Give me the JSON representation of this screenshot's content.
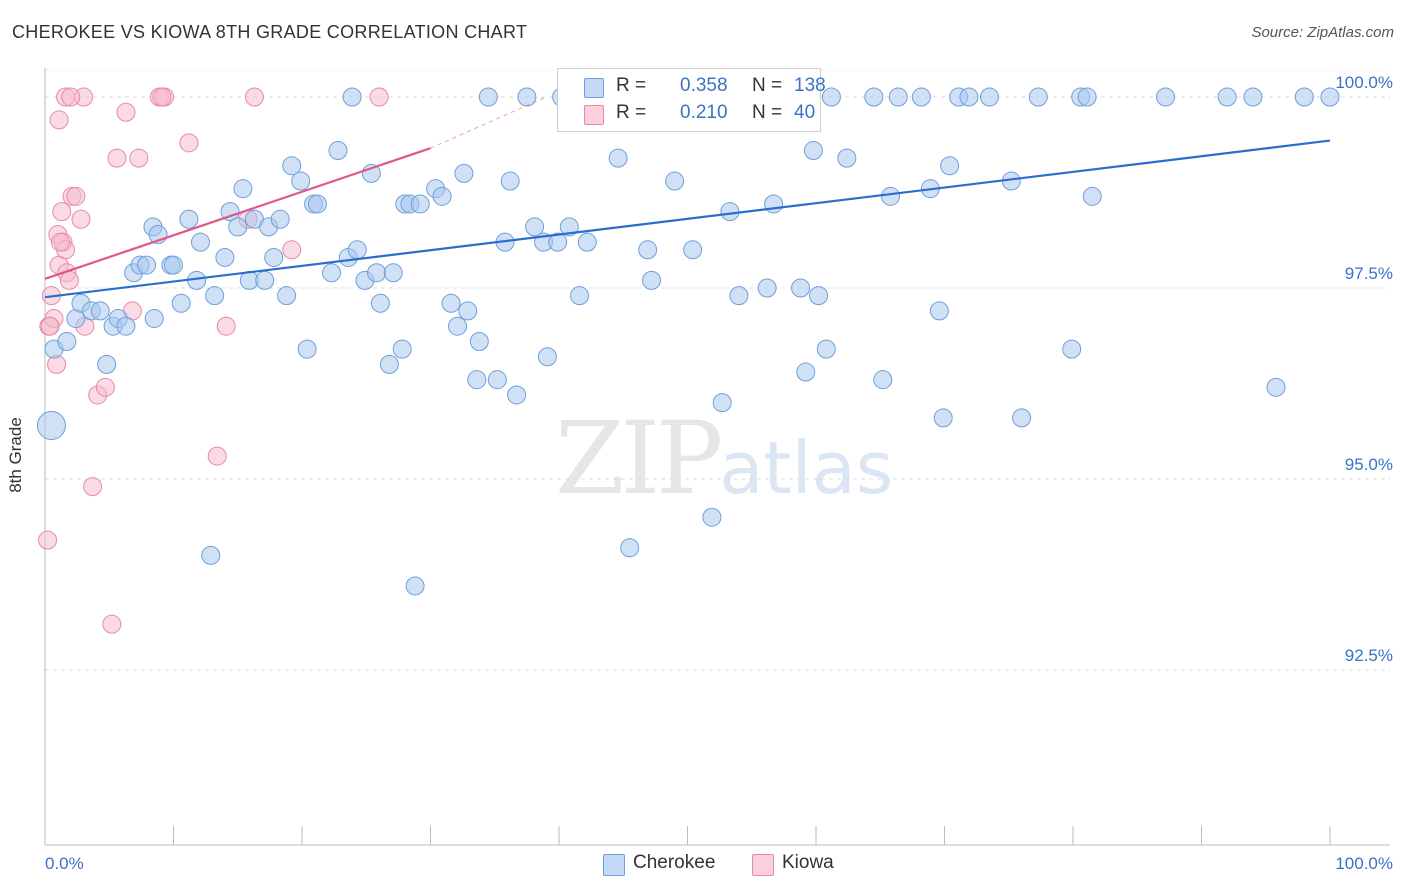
{
  "header": {
    "title": "CHEROKEE VS KIOWA 8TH GRADE CORRELATION CHART",
    "source": "Source: ZipAtlas.com"
  },
  "watermark": {
    "zip": "ZIP",
    "atlas": "atlas"
  },
  "colors": {
    "cherokee_fill": "#a9c8ee",
    "cherokee_stroke": "#6e9fdc",
    "cherokee_line": "#2a6dcf",
    "kiowa_fill": "#f6bccd",
    "kiowa_stroke": "#e88aa6",
    "kiowa_line": "#e0578a",
    "axis_label": "#3a72c4",
    "grid": "#dddddd"
  },
  "legend": {
    "rows": [
      {
        "r_label": "R =",
        "r_value": "0.358",
        "n_label": "N =",
        "n_value": "138"
      },
      {
        "r_label": "R =",
        "r_value": "0.210",
        "n_label": "N =",
        "n_value": "40"
      }
    ],
    "bottom": [
      {
        "name": "Cherokee"
      },
      {
        "name": "Kiowa"
      }
    ]
  },
  "chart_data": {
    "type": "scatter",
    "title": "CHEROKEE VS KIOWA 8TH GRADE CORRELATION CHART",
    "xlabel": "",
    "ylabel": "8th Grade",
    "xlim": [
      0,
      100
    ],
    "ylim": [
      90.0,
      100.45
    ],
    "x_tick_labels": [
      "0.0%",
      "100.0%"
    ],
    "y_ticks": [
      92.5,
      95.0,
      97.5,
      100.0
    ],
    "y_tick_labels": [
      "92.5%",
      "95.0%",
      "97.5%",
      "100.0%"
    ],
    "grid": true,
    "legend_placement": "top-center",
    "series": [
      {
        "name": "Cherokee",
        "R": 0.358,
        "N": 138,
        "trend": {
          "x": [
            0,
            100
          ],
          "y": [
            97.38,
            99.43
          ]
        },
        "points": [
          [
            0.5,
            95.7,
            14
          ],
          [
            0.7,
            96.7,
            9
          ],
          [
            1.7,
            96.8,
            9
          ],
          [
            2.4,
            97.1,
            9
          ],
          [
            2.8,
            97.3,
            9
          ],
          [
            3.6,
            97.2,
            9
          ],
          [
            4.3,
            97.2,
            9
          ],
          [
            4.8,
            96.5,
            9
          ],
          [
            5.3,
            97.0,
            9
          ],
          [
            5.7,
            97.1,
            9
          ],
          [
            6.3,
            97.0,
            9
          ],
          [
            6.9,
            97.7,
            9
          ],
          [
            7.4,
            97.8,
            9
          ],
          [
            7.9,
            97.8,
            9
          ],
          [
            8.5,
            97.1,
            9
          ],
          [
            8.4,
            98.3,
            9
          ],
          [
            8.8,
            98.2,
            9
          ],
          [
            9.8,
            97.8,
            9
          ],
          [
            10.0,
            97.8,
            9
          ],
          [
            10.6,
            97.3,
            9
          ],
          [
            11.2,
            98.4,
            9
          ],
          [
            11.8,
            97.6,
            9
          ],
          [
            12.1,
            98.1,
            9
          ],
          [
            12.9,
            94.0,
            9
          ],
          [
            13.2,
            97.4,
            9
          ],
          [
            14.0,
            97.9,
            9
          ],
          [
            14.4,
            98.5,
            9
          ],
          [
            15.0,
            98.3,
            9
          ],
          [
            15.4,
            98.8,
            9
          ],
          [
            15.9,
            97.6,
            9
          ],
          [
            16.3,
            98.4,
            9
          ],
          [
            17.1,
            97.6,
            9
          ],
          [
            17.4,
            98.3,
            9
          ],
          [
            17.8,
            97.9,
            9
          ],
          [
            18.3,
            98.4,
            9
          ],
          [
            18.8,
            97.4,
            9
          ],
          [
            19.2,
            99.1,
            9
          ],
          [
            19.9,
            98.9,
            9
          ],
          [
            20.4,
            96.7,
            9
          ],
          [
            20.9,
            98.6,
            9
          ],
          [
            21.2,
            98.6,
            9
          ],
          [
            22.3,
            97.7,
            9
          ],
          [
            22.8,
            99.3,
            9
          ],
          [
            23.6,
            97.9,
            9
          ],
          [
            23.9,
            100.0,
            9
          ],
          [
            24.3,
            98.0,
            9
          ],
          [
            24.9,
            97.6,
            9
          ],
          [
            25.4,
            99.0,
            9
          ],
          [
            25.8,
            97.7,
            9
          ],
          [
            26.1,
            97.3,
            9
          ],
          [
            26.8,
            96.5,
            9
          ],
          [
            27.1,
            97.7,
            9
          ],
          [
            27.8,
            96.7,
            9
          ],
          [
            28.0,
            98.6,
            9
          ],
          [
            28.4,
            98.6,
            9
          ],
          [
            28.8,
            93.6,
            9
          ],
          [
            29.2,
            98.6,
            9
          ],
          [
            30.4,
            98.8,
            9
          ],
          [
            30.9,
            98.7,
            9
          ],
          [
            31.6,
            97.3,
            9
          ],
          [
            32.1,
            97.0,
            9
          ],
          [
            32.6,
            99.0,
            9
          ],
          [
            32.9,
            97.2,
            9
          ],
          [
            33.6,
            96.3,
            9
          ],
          [
            33.8,
            96.8,
            9
          ],
          [
            34.5,
            100.0,
            9
          ],
          [
            35.2,
            96.3,
            9
          ],
          [
            35.8,
            98.1,
            9
          ],
          [
            36.2,
            98.9,
            9
          ],
          [
            36.7,
            96.1,
            9
          ],
          [
            37.5,
            100.0,
            9
          ],
          [
            38.1,
            98.3,
            9
          ],
          [
            38.8,
            98.1,
            9
          ],
          [
            39.1,
            96.6,
            9
          ],
          [
            39.9,
            98.1,
            9
          ],
          [
            40.2,
            100.0,
            9
          ],
          [
            40.8,
            98.3,
            9
          ],
          [
            41.6,
            97.4,
            9
          ],
          [
            42.2,
            98.1,
            9
          ],
          [
            44.6,
            99.2,
            9
          ],
          [
            45.5,
            94.1,
            9
          ],
          [
            46.9,
            98.0,
            9
          ],
          [
            47.2,
            97.6,
            9
          ],
          [
            47.6,
            100.0,
            9
          ],
          [
            49.0,
            98.9,
            9
          ],
          [
            50.4,
            98.0,
            9
          ],
          [
            51.2,
            100.0,
            9
          ],
          [
            51.9,
            94.5,
            9
          ],
          [
            52.7,
            96.0,
            9
          ],
          [
            53.3,
            98.5,
            9
          ],
          [
            54.0,
            97.4,
            9
          ],
          [
            55.0,
            100.0,
            9
          ],
          [
            56.2,
            97.5,
            9
          ],
          [
            56.7,
            98.6,
            9
          ],
          [
            58.1,
            100.0,
            9
          ],
          [
            58.8,
            97.5,
            9
          ],
          [
            59.2,
            96.4,
            9
          ],
          [
            59.8,
            99.3,
            9
          ],
          [
            60.2,
            97.4,
            9
          ],
          [
            60.8,
            96.7,
            9
          ],
          [
            61.2,
            100.0,
            9
          ],
          [
            62.4,
            99.2,
            9
          ],
          [
            64.5,
            100.0,
            9
          ],
          [
            65.2,
            96.3,
            9
          ],
          [
            65.8,
            98.7,
            9
          ],
          [
            66.4,
            100.0,
            9
          ],
          [
            68.2,
            100.0,
            9
          ],
          [
            68.9,
            98.8,
            9
          ],
          [
            69.6,
            97.2,
            9
          ],
          [
            69.9,
            95.8,
            9
          ],
          [
            70.4,
            99.1,
            9
          ],
          [
            71.1,
            100.0,
            9
          ],
          [
            71.9,
            100.0,
            9
          ],
          [
            73.5,
            100.0,
            9
          ],
          [
            75.2,
            98.9,
            9
          ],
          [
            76.0,
            95.8,
            9
          ],
          [
            77.3,
            100.0,
            9
          ],
          [
            79.9,
            96.7,
            9
          ],
          [
            80.6,
            100.0,
            9
          ],
          [
            81.1,
            100.0,
            9
          ],
          [
            81.5,
            98.7,
            9
          ],
          [
            87.2,
            100.0,
            9
          ],
          [
            92.0,
            100.0,
            9
          ],
          [
            94.0,
            100.0,
            9
          ],
          [
            95.8,
            96.2,
            9
          ],
          [
            98.0,
            100.0,
            9
          ],
          [
            100.0,
            100.0,
            9
          ]
        ]
      },
      {
        "name": "Kiowa",
        "R": 0.21,
        "N": 40,
        "trend": {
          "x": [
            0,
            30.0
          ],
          "y": [
            97.62,
            99.33
          ],
          "dashed_extension": {
            "x": [
              30.0,
              39.0
            ],
            "y": [
              99.33,
              100.0
            ]
          }
        },
        "points": [
          [
            0.2,
            94.2,
            9
          ],
          [
            0.3,
            97.0,
            9
          ],
          [
            0.5,
            97.4,
            9
          ],
          [
            0.7,
            97.1,
            9
          ],
          [
            0.9,
            96.5,
            9
          ],
          [
            1.0,
            98.2,
            9
          ],
          [
            1.1,
            97.8,
            9
          ],
          [
            1.3,
            98.5,
            9
          ],
          [
            1.4,
            98.1,
            9
          ],
          [
            1.6,
            98.0,
            9
          ],
          [
            1.7,
            97.7,
            9
          ],
          [
            1.9,
            97.6,
            9
          ],
          [
            2.1,
            98.7,
            9
          ],
          [
            2.4,
            98.7,
            9
          ],
          [
            2.8,
            98.4,
            9
          ],
          [
            3.1,
            97.0,
            9
          ],
          [
            3.7,
            94.9,
            9
          ],
          [
            4.1,
            96.1,
            9
          ],
          [
            4.7,
            96.2,
            9
          ],
          [
            5.2,
            93.1,
            9
          ],
          [
            5.6,
            99.2,
            9
          ],
          [
            6.3,
            99.8,
            9
          ],
          [
            6.8,
            97.2,
            9
          ],
          [
            7.3,
            99.2,
            9
          ],
          [
            8.9,
            100.0,
            9
          ],
          [
            9.3,
            100.0,
            9
          ],
          [
            11.2,
            99.4,
            9
          ],
          [
            13.4,
            95.3,
            9
          ],
          [
            14.1,
            97.0,
            9
          ],
          [
            15.8,
            98.4,
            9
          ],
          [
            16.3,
            100.0,
            9
          ],
          [
            19.2,
            98.0,
            9
          ],
          [
            1.1,
            99.7,
            9
          ],
          [
            1.6,
            100.0,
            9
          ],
          [
            3.0,
            100.0,
            9
          ],
          [
            0.4,
            97.0,
            9
          ],
          [
            1.2,
            98.1,
            9
          ],
          [
            2.0,
            100.0,
            9
          ],
          [
            9.1,
            100.0,
            9
          ],
          [
            26.0,
            100.0,
            9
          ]
        ]
      }
    ]
  }
}
